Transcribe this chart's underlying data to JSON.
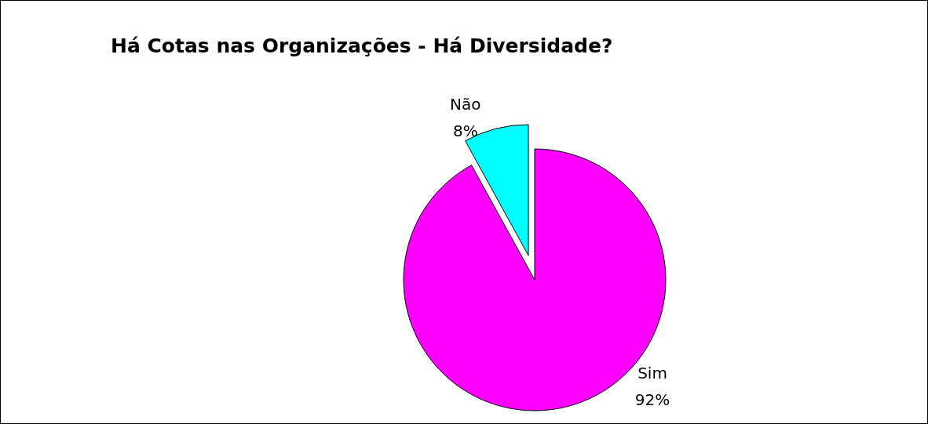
{
  "chart_data": {
    "type": "pie",
    "title": "Há Cotas nas Organizações - Há Diversidade?",
    "categories": [
      "Não",
      "Sim"
    ],
    "values": [
      8,
      92
    ],
    "colors": [
      "#00ffff",
      "#ff00ff"
    ],
    "value_labels": [
      "8%",
      "92%"
    ],
    "legend": false
  }
}
